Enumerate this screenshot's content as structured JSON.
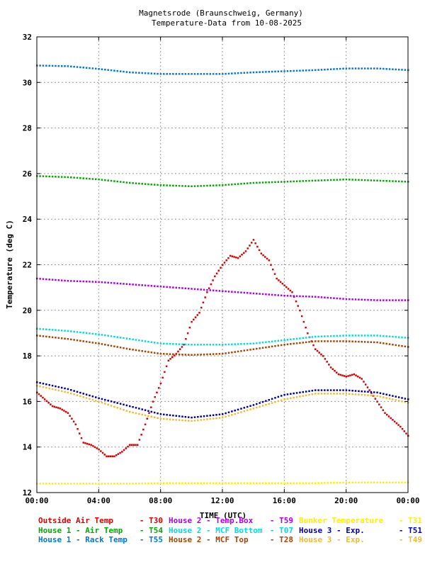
{
  "chart_data": {
    "type": "scatter",
    "title": "Magnetsrode (Braunschweig, Germany)",
    "subtitle": "Temperature-Data from 10-08-2025",
    "xlabel": "TIME (UTC)",
    "ylabel": "Temperature (deg C)",
    "xlim": [
      0,
      24
    ],
    "ylim": [
      12,
      32
    ],
    "x_ticks": [
      0,
      4,
      8,
      12,
      16,
      20,
      24
    ],
    "x_tick_labels": [
      "00:00",
      "04:00",
      "08:00",
      "12:00",
      "16:00",
      "20:00",
      "00:00"
    ],
    "y_ticks": [
      12,
      14,
      16,
      18,
      20,
      22,
      24,
      26,
      28,
      30,
      32
    ],
    "grid": true,
    "legend_position": "bottom",
    "series": [
      {
        "name": "Outside Air Temp",
        "code": "T30",
        "color": "#dd0000",
        "x": [
          0,
          0.5,
          1,
          1.5,
          2,
          2.5,
          3,
          3.5,
          4,
          4.5,
          5,
          5.5,
          6,
          6.5,
          7,
          7.5,
          8,
          8.5,
          9,
          9.5,
          10,
          10.5,
          11,
          11.5,
          12,
          12.5,
          13,
          13.5,
          14,
          14.5,
          15,
          15.5,
          16,
          16.5,
          17,
          17.5,
          18,
          18.5,
          19,
          19.5,
          20,
          20.5,
          21,
          21.5,
          22,
          22.5,
          23,
          23.5,
          24
        ],
        "y": [
          16.4,
          16.1,
          15.8,
          15.7,
          15.5,
          15.0,
          14.2,
          14.1,
          13.9,
          13.6,
          13.6,
          13.8,
          14.1,
          14.1,
          15.0,
          16.0,
          16.8,
          17.8,
          18.1,
          18.5,
          19.5,
          19.9,
          20.8,
          21.5,
          22.0,
          22.4,
          22.3,
          22.6,
          23.1,
          22.5,
          22.2,
          21.4,
          21.1,
          20.8,
          20.0,
          19.0,
          18.3,
          18.0,
          17.5,
          17.2,
          17.1,
          17.2,
          17.0,
          16.5,
          16.0,
          15.5,
          15.2,
          14.9,
          14.5
        ]
      },
      {
        "name": "House 1 - Air  Temp",
        "code": "T54",
        "color": "#00aa00",
        "x": [
          0,
          2,
          4,
          6,
          8,
          10,
          12,
          14,
          16,
          18,
          20,
          22,
          24
        ],
        "y": [
          25.9,
          25.85,
          25.75,
          25.6,
          25.5,
          25.45,
          25.5,
          25.6,
          25.65,
          25.7,
          25.75,
          25.7,
          25.65
        ]
      },
      {
        "name": "House 1 - Rack Temp",
        "code": "T55",
        "color": "#0077dd",
        "x": [
          0,
          2,
          4,
          6,
          8,
          10,
          12,
          14,
          16,
          18,
          20,
          22,
          24
        ],
        "y": [
          30.75,
          30.72,
          30.6,
          30.45,
          30.38,
          30.38,
          30.38,
          30.45,
          30.5,
          30.55,
          30.62,
          30.62,
          30.55
        ]
      },
      {
        "name": "House 2 - Temp.Box",
        "code": "T59",
        "color": "#aa00ee",
        "x": [
          0,
          2,
          4,
          6,
          8,
          10,
          12,
          14,
          16,
          18,
          20,
          22,
          24
        ],
        "y": [
          21.4,
          21.3,
          21.25,
          21.15,
          21.05,
          20.95,
          20.85,
          20.75,
          20.65,
          20.6,
          20.5,
          20.45,
          20.45
        ]
      },
      {
        "name": "House 2 - MCF Bottom",
        "code": "T07",
        "color": "#00dddd",
        "x": [
          0,
          2,
          4,
          6,
          8,
          10,
          12,
          14,
          16,
          18,
          20,
          22,
          24
        ],
        "y": [
          19.2,
          19.1,
          18.95,
          18.75,
          18.55,
          18.5,
          18.5,
          18.55,
          18.7,
          18.85,
          18.9,
          18.9,
          18.8
        ]
      },
      {
        "name": "House 3 - Exp.",
        "code": "T51",
        "color": "#0000aa",
        "x": [
          0,
          2,
          4,
          6,
          8,
          10,
          12,
          14,
          16,
          18,
          20,
          22,
          24
        ],
        "y": [
          16.85,
          16.55,
          16.15,
          15.8,
          15.45,
          15.3,
          15.45,
          15.85,
          16.3,
          16.5,
          16.5,
          16.4,
          16.1
        ]
      },
      {
        "name": "Bunker Temperature",
        "code": "T31",
        "color": "#ffee00",
        "x": [
          0,
          2,
          4,
          6,
          8,
          10,
          12,
          14,
          16,
          18,
          20,
          22,
          24
        ],
        "y": [
          12.4,
          12.4,
          12.4,
          12.4,
          12.42,
          12.42,
          12.42,
          12.42,
          12.42,
          12.42,
          12.45,
          12.45,
          12.45
        ]
      },
      {
        "name": "House 2 - MCF Top",
        "code": "T28",
        "color": "#aa4400",
        "x": [
          0,
          2,
          4,
          6,
          8,
          10,
          12,
          14,
          16,
          18,
          20,
          22,
          24
        ],
        "y": [
          18.9,
          18.75,
          18.55,
          18.3,
          18.1,
          18.05,
          18.1,
          18.3,
          18.5,
          18.65,
          18.65,
          18.6,
          18.4
        ]
      },
      {
        "name": "House 3 - Exp.",
        "code": "T49",
        "color": "#eebb33",
        "x": [
          0,
          2,
          4,
          6,
          8,
          10,
          12,
          14,
          16,
          18,
          20,
          22,
          24
        ],
        "y": [
          16.7,
          16.4,
          16.0,
          15.55,
          15.25,
          15.15,
          15.3,
          15.7,
          16.1,
          16.35,
          16.35,
          16.25,
          15.95
        ]
      }
    ],
    "legend": [
      {
        "name": "Outside Air Temp",
        "code": "T30"
      },
      {
        "name": "House 2 - Temp.Box",
        "code": "T59"
      },
      {
        "name": "Bunker Temperature",
        "code": "T31"
      },
      {
        "name": "House 1 - Air  Temp",
        "code": "T54"
      },
      {
        "name": "House 2 - MCF Bottom",
        "code": "T07"
      },
      {
        "name": "House 3 - Exp.",
        "code": "T51"
      },
      {
        "name": "House 1 - Rack Temp",
        "code": "T55"
      },
      {
        "name": "House 2 - MCF Top",
        "code": "T28"
      },
      {
        "name": "House 3 - Exp.",
        "code": "T49"
      }
    ]
  }
}
